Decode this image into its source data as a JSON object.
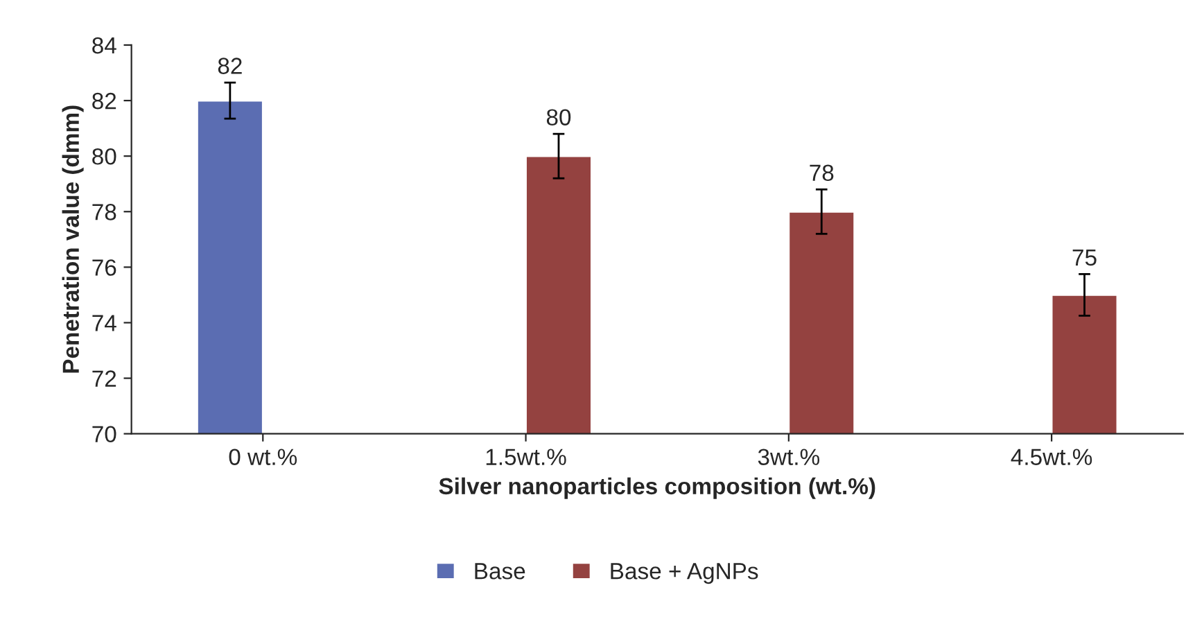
{
  "chart_data": {
    "type": "bar",
    "xlabel": "Silver nanoparticles composition (wt.%)",
    "ylabel": "Penetration value (dmm)",
    "categories": [
      "0 wt.%",
      "1.5wt.%",
      "3wt.%",
      "4.5wt.%"
    ],
    "series": [
      {
        "name": "Base",
        "color": "#5b6db2",
        "values": [
          82,
          null,
          null,
          null
        ],
        "errors": [
          0.65,
          null,
          null,
          null
        ]
      },
      {
        "name": "Base + AgNPs",
        "color": "#944240",
        "values": [
          null,
          80,
          78,
          75
        ],
        "errors": [
          null,
          0.8,
          0.8,
          0.75
        ]
      }
    ],
    "ylim": [
      70,
      84
    ],
    "yticks": [
      70,
      72,
      74,
      76,
      78,
      80,
      82,
      84
    ],
    "data_labels": true,
    "grid": false,
    "legend": "bottom"
  }
}
